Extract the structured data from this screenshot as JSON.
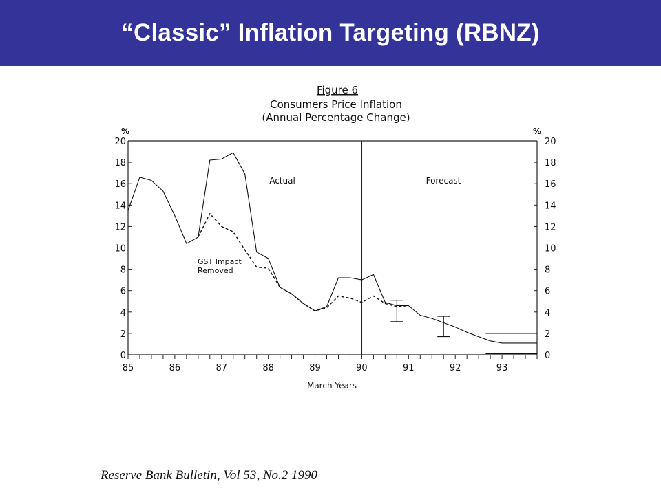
{
  "slide": {
    "title": "“Classic” Inflation Targeting (RBNZ)",
    "source": "Reserve Bank Bulletin, Vol 53, No.2 1990"
  },
  "chart_data": {
    "type": "line",
    "figure_label": "Figure 6",
    "title": "Consumers Price Inflation",
    "subtitle": "(Annual Percentage Change)",
    "xlabel": "March Years",
    "ylabel_left": "%",
    "ylabel_right": "%",
    "x_ticks": [
      "85",
      "86",
      "87",
      "88",
      "89",
      "90",
      "91",
      "92",
      "93"
    ],
    "y_ticks": [
      0,
      2,
      4,
      6,
      8,
      10,
      12,
      14,
      16,
      18,
      20
    ],
    "ylim": [
      0,
      20
    ],
    "xlim": [
      85,
      93.75
    ],
    "divider_x": 90,
    "annotations": {
      "actual": "Actual",
      "forecast": "Forecast",
      "gst_line1": "GST Impact",
      "gst_line2": "Removed"
    },
    "series": [
      {
        "name": "Actual",
        "style": "solid",
        "x": [
          85,
          85.25,
          85.5,
          85.75,
          86,
          86.25,
          86.5,
          86.75,
          87,
          87.25,
          87.5,
          87.75,
          88,
          88.25,
          88.5,
          88.75,
          89,
          89.25,
          89.5,
          89.75,
          90,
          90.25,
          90.5,
          90.75,
          91,
          91.25,
          91.5,
          91.75,
          92,
          92.25,
          92.5,
          92.75,
          93,
          93.25,
          93.5,
          93.75
        ],
        "values": [
          13.5,
          16.6,
          16.3,
          15.3,
          13.0,
          10.4,
          11.0,
          18.2,
          18.3,
          18.9,
          16.9,
          9.6,
          9.0,
          6.3,
          5.7,
          4.8,
          4.1,
          4.5,
          7.2,
          7.2,
          7.0,
          7.5,
          4.9,
          4.6,
          4.6,
          3.7,
          3.4,
          3.0,
          2.6,
          2.1,
          1.7,
          1.3,
          1.1,
          1.1,
          1.1,
          1.1
        ]
      },
      {
        "name": "GST Impact Removed",
        "style": "dashed",
        "x": [
          86.5,
          86.75,
          87,
          87.25,
          87.5,
          87.75,
          88,
          88.25,
          88.5,
          88.75,
          89,
          89.25,
          89.5,
          89.75,
          90,
          90.25,
          90.5,
          90.75,
          91
        ],
        "values": [
          11.0,
          13.2,
          12.0,
          11.5,
          9.8,
          8.2,
          8.1,
          6.3,
          5.7,
          4.8,
          4.1,
          4.4,
          5.5,
          5.3,
          4.9,
          5.5,
          4.8,
          4.5,
          4.6
        ]
      }
    ],
    "error_bars": [
      {
        "x": 90.75,
        "low": 3.1,
        "high": 5.1
      },
      {
        "x": 91.75,
        "low": 1.7,
        "high": 3.6
      }
    ],
    "target_band": {
      "x_start": 92.65,
      "x_end": 93.75,
      "low": 0,
      "high": 2
    }
  }
}
